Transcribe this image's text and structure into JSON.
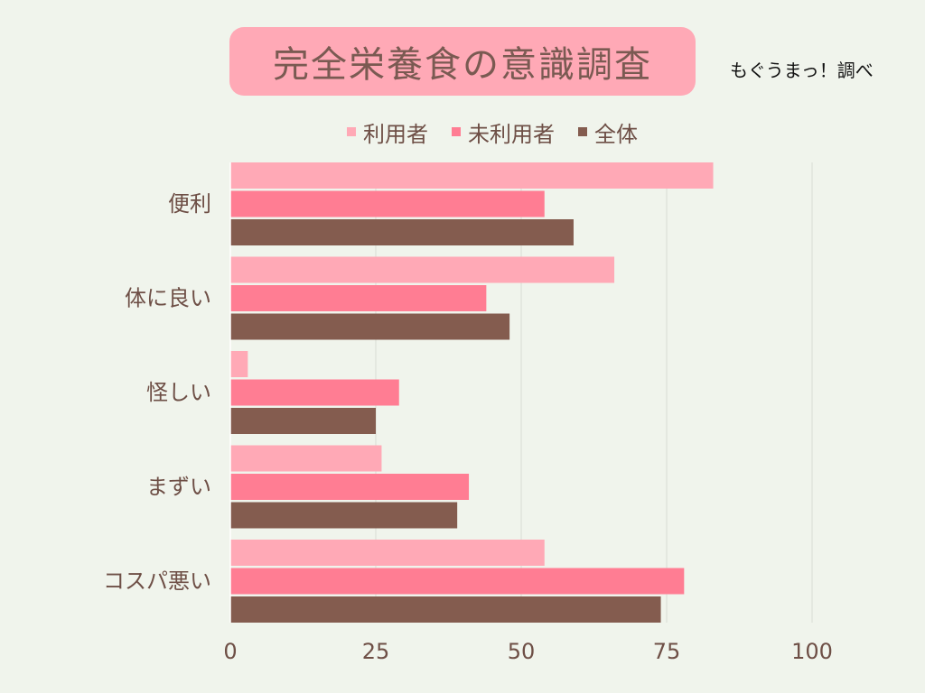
{
  "header": {
    "title": "完全栄養食の意識調査",
    "source": "もぐうまっ！調べ"
  },
  "chart_data": {
    "type": "bar",
    "orientation": "horizontal",
    "title": "完全栄養食の意識調査",
    "categories": [
      "便利",
      "体に良い",
      "怪しい",
      "まずい",
      "コスパ悪い"
    ],
    "series": [
      {
        "name": "利用者",
        "color": "#ffa9b6",
        "values": [
          83,
          66,
          3,
          26,
          54
        ]
      },
      {
        "name": "未利用者",
        "color": "#ff7d93",
        "values": [
          54,
          44,
          29,
          41,
          78
        ]
      },
      {
        "name": "全体",
        "color": "#845c4f",
        "values": [
          59,
          48,
          25,
          39,
          74
        ]
      }
    ],
    "xlim": [
      0,
      100
    ],
    "xticks": [
      "0",
      "25",
      "50",
      "75",
      "100"
    ],
    "xtick_values": [
      0,
      25,
      50,
      75,
      100
    ],
    "grid": true,
    "legend_position": "top"
  }
}
